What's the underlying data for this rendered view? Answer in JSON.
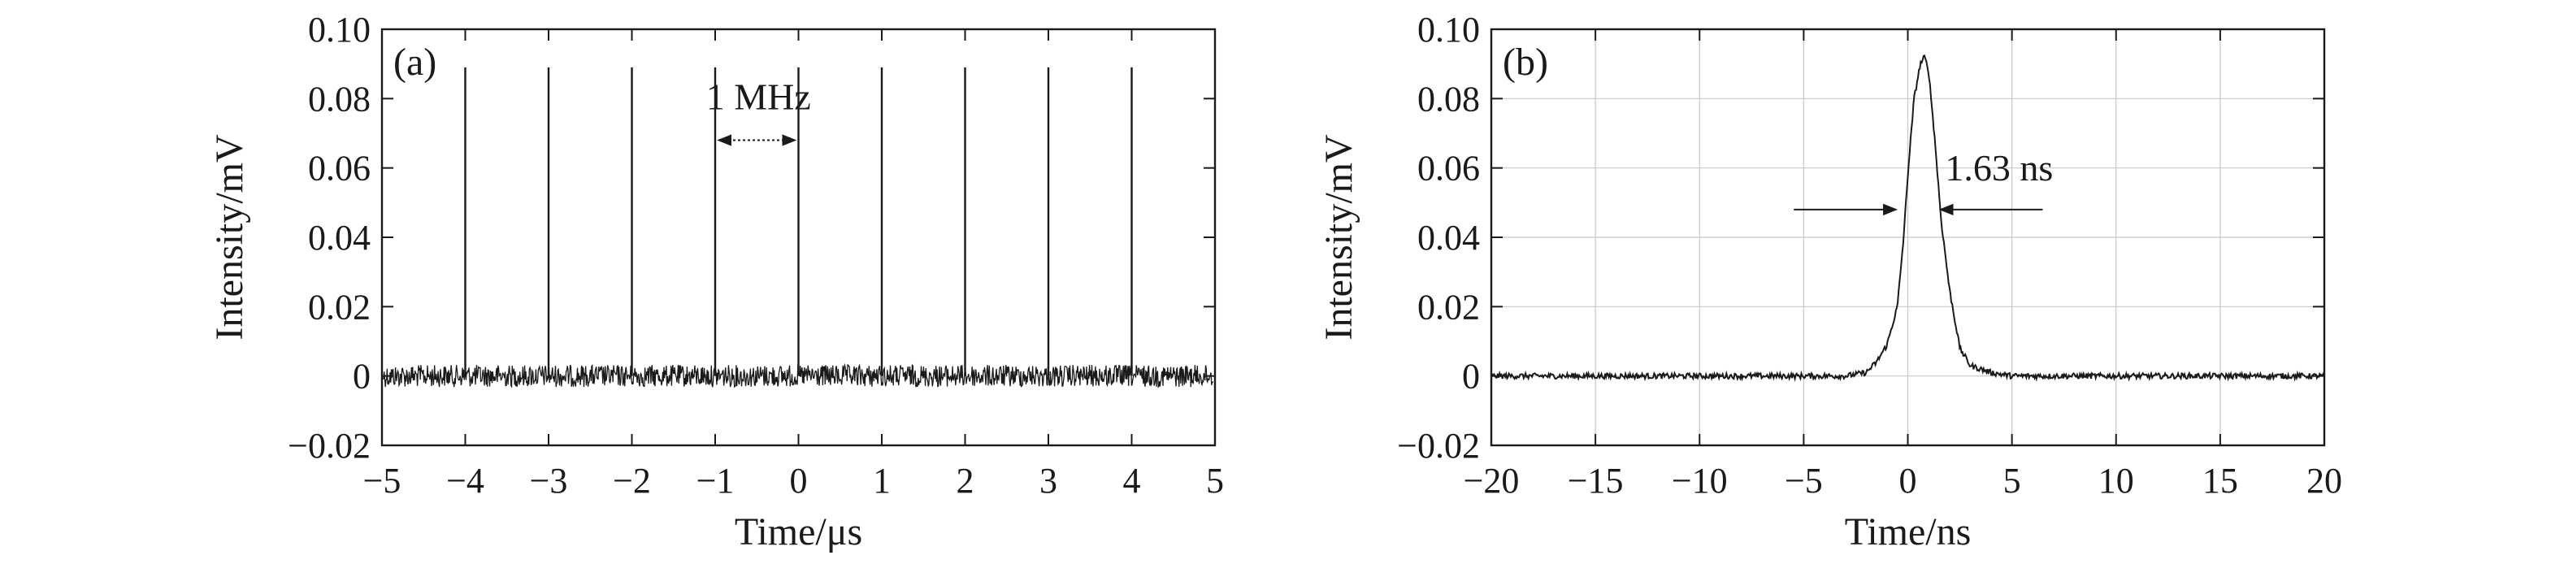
{
  "chart_data": [
    {
      "type": "line",
      "panel_label": "(a)",
      "xlabel": "Time/μs",
      "ylabel": "Intensity/mV",
      "xlim": [
        -5,
        5
      ],
      "ylim": [
        -0.02,
        0.1
      ],
      "xticks": [
        -5,
        -4,
        -3,
        -2,
        -1,
        0,
        1,
        2,
        3,
        4,
        5
      ],
      "xtick_labels": [
        "−5",
        "−4",
        "−3",
        "−2",
        "−1",
        "0",
        "1",
        "2",
        "3",
        "4",
        "5"
      ],
      "yticks": [
        -0.02,
        0,
        0.02,
        0.04,
        0.06,
        0.08,
        0.1
      ],
      "ytick_labels": [
        "−0.02",
        "0",
        "0.02",
        "0.04",
        "0.06",
        "0.08",
        "0.10"
      ],
      "grid": false,
      "series": [
        {
          "pulse_times": [
            -4,
            -3,
            -2,
            -1,
            0,
            1,
            2,
            3,
            4
          ],
          "pulse_peak": 0.089,
          "baseline": 0.0,
          "noise_amplitude": 0.002
        }
      ],
      "annotations": [
        {
          "text": "1 MHz",
          "type": "double-arrow",
          "x_from": -1,
          "x_to": 0,
          "y": 0.068
        }
      ]
    },
    {
      "type": "line",
      "panel_label": "(b)",
      "xlabel": "Time/ns",
      "ylabel": "Intensity/mV",
      "xlim": [
        -20,
        20
      ],
      "ylim": [
        -0.02,
        0.1
      ],
      "xticks": [
        -20,
        -15,
        -10,
        -5,
        0,
        5,
        10,
        15,
        20
      ],
      "xtick_labels": [
        "−20",
        "−15",
        "−10",
        "−5",
        "0",
        "5",
        "10",
        "15",
        "20"
      ],
      "yticks": [
        -0.02,
        0,
        0.02,
        0.04,
        0.06,
        0.08,
        0.1
      ],
      "ytick_labels": [
        "−0.02",
        "0",
        "0.02",
        "0.04",
        "0.06",
        "0.08",
        "0.10"
      ],
      "grid": true,
      "series": [
        {
          "x": [
            -20,
            -15,
            -10,
            -5,
            -3,
            -2,
            -1.5,
            -1,
            -0.5,
            -0.2,
            0,
            0.3,
            0.6,
            0.8,
            1,
            1.3,
            1.6,
            2,
            2.5,
            3,
            4,
            5,
            10,
            15,
            20
          ],
          "y": [
            0.0,
            0.0,
            0.0,
            0.0,
            0.0,
            0.001,
            0.004,
            0.009,
            0.02,
            0.04,
            0.058,
            0.08,
            0.09,
            0.092,
            0.088,
            0.068,
            0.045,
            0.025,
            0.008,
            0.003,
            0.001,
            0.0,
            0.0,
            0.0,
            0.0
          ]
        }
      ],
      "annotations": [
        {
          "text": "1.63 ns",
          "type": "fwhm-arrows",
          "x_left": -0.4,
          "x_right": 1.4,
          "y": 0.048
        }
      ]
    }
  ]
}
